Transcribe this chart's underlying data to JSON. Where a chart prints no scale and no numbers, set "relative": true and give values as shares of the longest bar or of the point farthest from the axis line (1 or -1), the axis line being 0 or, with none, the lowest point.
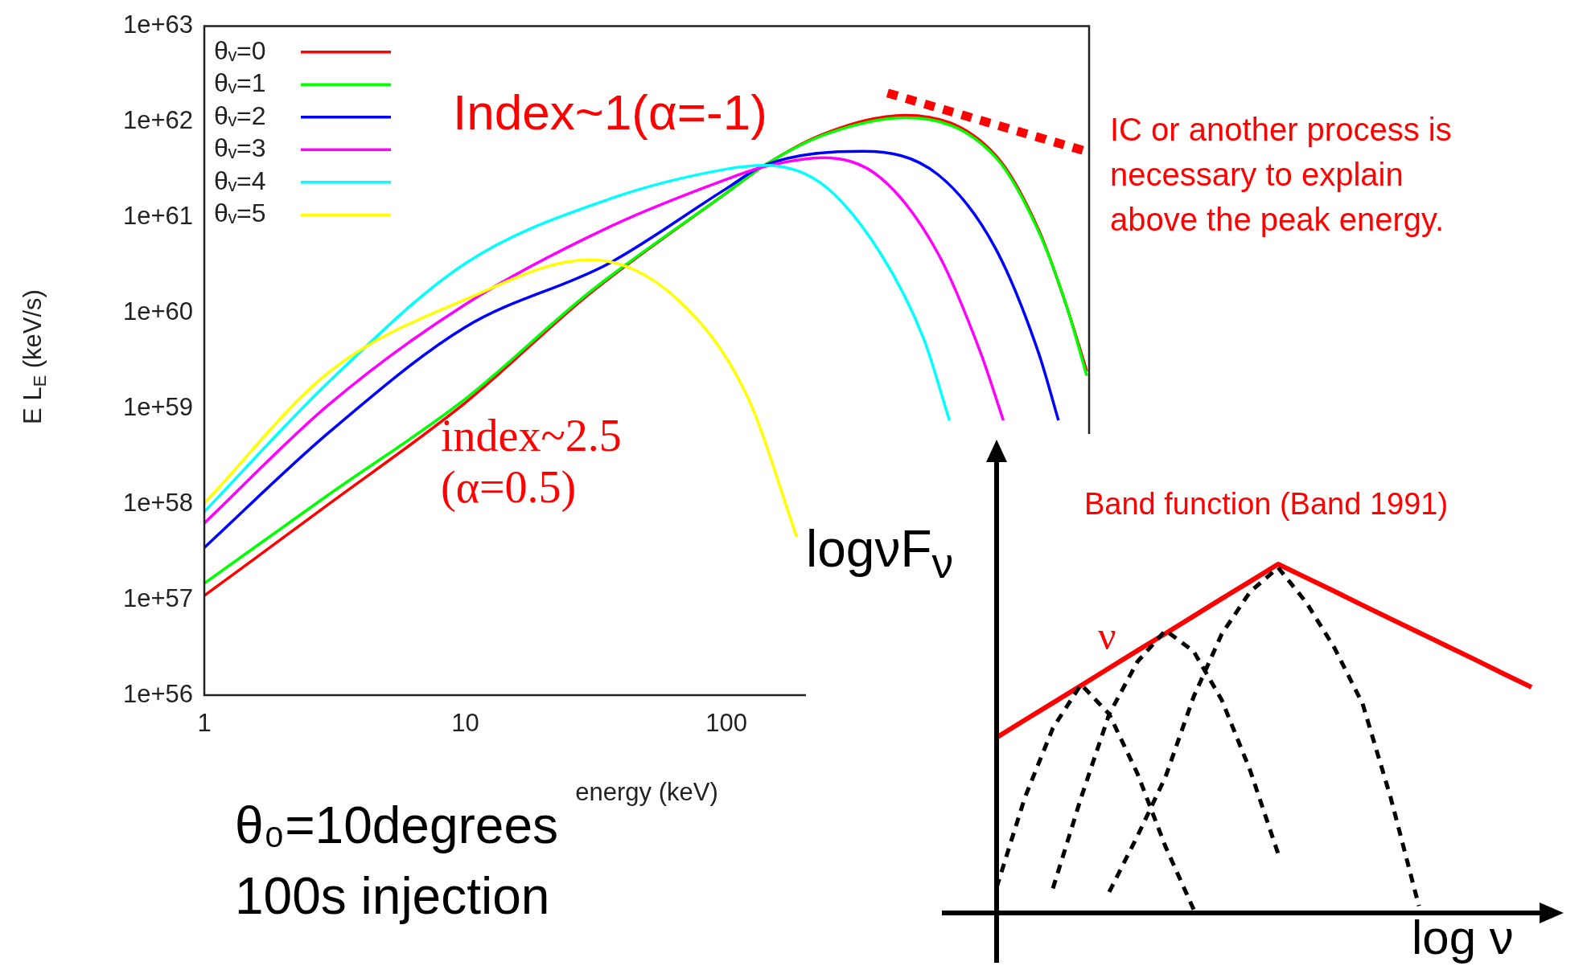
{
  "chart_data": [
    {
      "type": "line",
      "xlabel": "energy (keV)",
      "ylabel": "E L$_{E}$ (keV/s)",
      "log": "xy",
      "xlim": [
        1,
        2450
      ],
      "ylim": [
        1e+56,
        1e+63
      ],
      "xticks": [
        1,
        10,
        100
      ],
      "yticks": [
        {
          "value": 1e+56,
          "label": "1e+56"
        },
        {
          "value": 1e+57,
          "label": "1e+57"
        },
        {
          "value": 1e+58,
          "label": "1e+58"
        },
        {
          "value": 1e+59,
          "label": "1e+59"
        },
        {
          "value": 1e+60,
          "label": "1e+60"
        },
        {
          "value": 1e+61,
          "label": "1e+61"
        },
        {
          "value": 1e+62,
          "label": "1e+62"
        },
        {
          "value": 1e+63,
          "label": "1e+63"
        }
      ],
      "grid": false,
      "legend": "top left",
      "line_style": "solid",
      "series": [
        {
          "name": "θᵥ=0",
          "color": "#ff0000",
          "x": [
            1,
            3,
            10,
            30,
            100,
            140,
            234,
            486,
            1070,
            1570,
            2010,
            2400
          ],
          "values": [
            1.1e+57,
            1e+58,
            1.15e+59,
            1.6e+60,
            1.8e+61,
            3.5e+61,
            7.4e+61,
            1.17e+62,
            4.5e+61,
            7.4e+60,
            1.17e+60,
            2.45e+59
          ]
        },
        {
          "name": "θᵥ=1",
          "color": "#00ff00",
          "x": [
            1,
            3,
            10,
            30,
            100,
            140,
            234,
            486,
            1070,
            1570,
            2010,
            2400
          ],
          "values": [
            1.48e+57,
            1.26e+58,
            1.26e+59,
            1.66e+60,
            1.8e+61,
            3.5e+61,
            7.2e+61,
            1.1e+62,
            4.3e+61,
            7.1e+60,
            1.17e+60,
            2.2e+59
          ]
        },
        {
          "name": "θᵥ=2",
          "color": "#0000ff",
          "x": [
            1,
            3,
            10,
            35.5,
            100,
            140,
            334,
            646,
            1070,
            1570,
            1870
          ],
          "values": [
            3.5e+57,
            5.6e+58,
            7.1e+59,
            3.3e+60,
            2e+61,
            3.5e+61,
            4.9e+61,
            2.8e+61,
            4.8e+60,
            3.8e+59,
            7.5e+58
          ]
        },
        {
          "name": "θᵥ=3",
          "color": "#ff00ff",
          "x": [
            1,
            3,
            10,
            35.5,
            100,
            140,
            234,
            389,
            646,
            942,
            1150
          ],
          "values": [
            6.3e+57,
            1.1e+59,
            1.23e+60,
            7.9e+60,
            2.5e+61,
            3.4e+61,
            4.2e+61,
            2.6e+61,
            4.2e+60,
            3.8e+59,
            7.5e+58
          ]
        },
        {
          "name": "θᵥ=4",
          "color": "#00ffff",
          "x": [
            1,
            3,
            10,
            35.5,
            100,
            140,
            234,
            389,
            569,
            715
          ],
          "values": [
            8.3e+57,
            1.9e+59,
            3.3e+60,
            1.55e+61,
            3.2e+61,
            3.5e+61,
            2.2e+61,
            4.2e+60,
            5.4e+59,
            7.5e+58
          ]
        },
        {
          "name": "θᵥ=5",
          "color": "#ffff00",
          "x": [
            1,
            3,
            10,
            30,
            65,
            120,
            186
          ],
          "values": [
            1.02e+58,
            2.4e+59,
            1.38e+60,
            3.6e+60,
            1.38e+60,
            1.35e+59,
            4.5e+57
          ]
        },
        {
          "color": "#ff0000",
          "line_style": "dashed",
          "x": [
            414,
            2390
          ],
          "values": [
            2e+62,
            4.9e+61
          ]
        }
      ],
      "annotations": [
        "Index~1(α=-1)",
        "index~2.5 (α=0.5)",
        "IC or another process is necessary to explain above the peak energy.",
        "θ₀=10degrees",
        "100s injection"
      ]
    },
    {
      "type": "line",
      "relative": true,
      "xlabel": "log ν",
      "ylabel": "logνF$_{ν}$",
      "legend": false,
      "categories": [
        null,
        null,
        null,
        null,
        null,
        null,
        null,
        null,
        null,
        null,
        null,
        null,
        null,
        null,
        null,
        null,
        null,
        null,
        null,
        null
      ],
      "series": [
        {
          "name": "Band function (Band 1991)",
          "color": "#ff0000",
          "values": [
            0.503,
            0.553,
            0.602,
            0.652,
            0.702,
            0.752,
            0.801,
            0.851,
            0.901,
            0.95,
            1,
            0.961,
            0.922,
            0.882,
            0.843,
            0.804,
            0.765,
            0.726,
            0.686,
            0.647
          ]
        },
        {
          "color": "#000000",
          "line_style": "dashed",
          "values": [
            0.073,
            0.33,
            0.53,
            0.655,
            0.57,
            0.4,
            0.19,
            0.01,
            null,
            null,
            null,
            null,
            null,
            null,
            null,
            null,
            null,
            null,
            null,
            null
          ]
        },
        {
          "color": "#000000",
          "line_style": "dashed",
          "values": [
            null,
            null,
            0.07,
            0.33,
            0.57,
            0.72,
            0.81,
            0.75,
            0.61,
            0.41,
            0.17,
            null,
            null,
            null,
            null,
            null,
            null,
            null,
            null,
            null
          ]
        },
        {
          "color": "#000000",
          "line_style": "dashed",
          "values": [
            null,
            null,
            null,
            null,
            0.06,
            0.22,
            0.39,
            0.62,
            0.8,
            0.92,
            0.99,
            0.89,
            0.76,
            0.6,
            0.33,
            0.02,
            null,
            null,
            null,
            null
          ]
        }
      ],
      "annotations": [
        "ν"
      ]
    }
  ]
}
